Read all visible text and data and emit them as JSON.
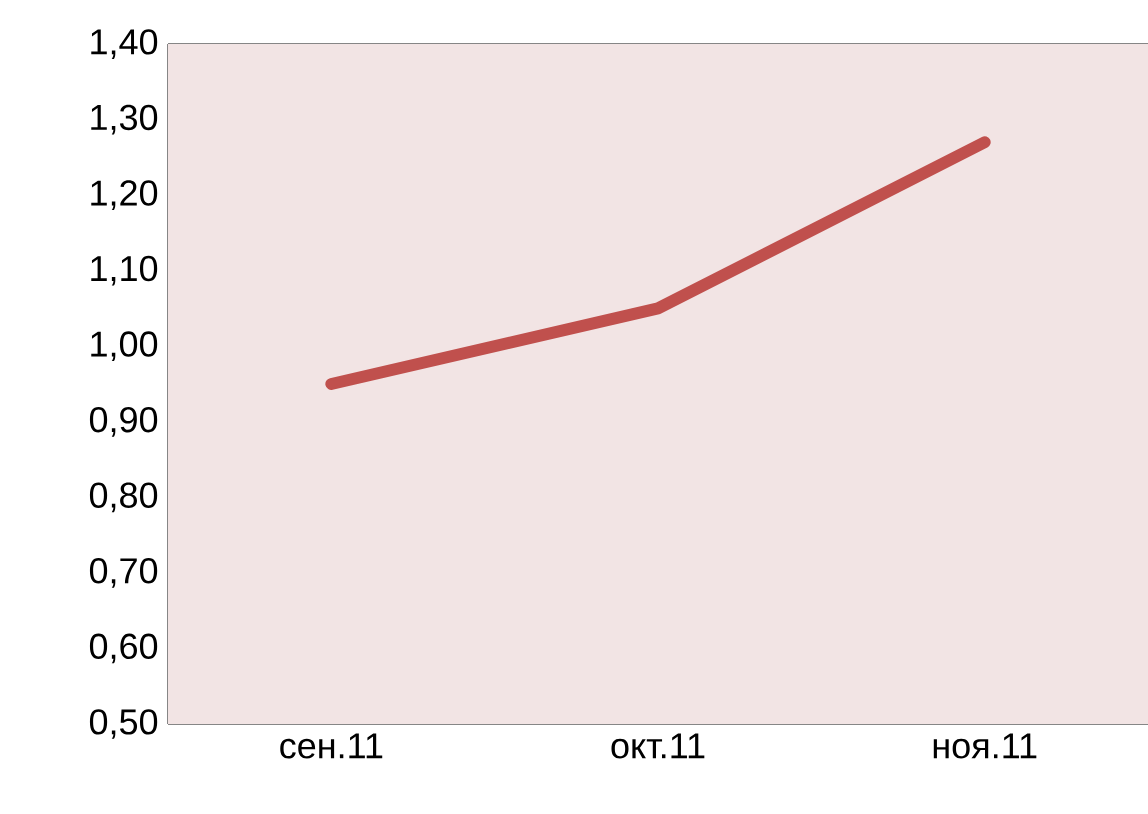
{
  "chart_data": {
    "type": "line",
    "categories": [
      "сен.11",
      "окт.11",
      "ноя.11"
    ],
    "series": [
      {
        "color": "#c0504d",
        "values": [
          0.95,
          1.05,
          1.27
        ]
      }
    ],
    "ylim": [
      0.5,
      1.4
    ],
    "yticks": [
      {
        "value": 0.5,
        "label": "0,50"
      },
      {
        "value": 0.6,
        "label": "0,60"
      },
      {
        "value": 0.7,
        "label": "0,70"
      },
      {
        "value": 0.8,
        "label": "0,80"
      },
      {
        "value": 0.9,
        "label": "0,90"
      },
      {
        "value": 1.0,
        "label": "1,00"
      },
      {
        "value": 1.1,
        "label": "1,10"
      },
      {
        "value": 1.2,
        "label": "1,20"
      },
      {
        "value": 1.3,
        "label": "1,30"
      },
      {
        "value": 1.4,
        "label": "1,40"
      }
    ],
    "grid": "y",
    "marker": "none",
    "line_style": "solid"
  }
}
